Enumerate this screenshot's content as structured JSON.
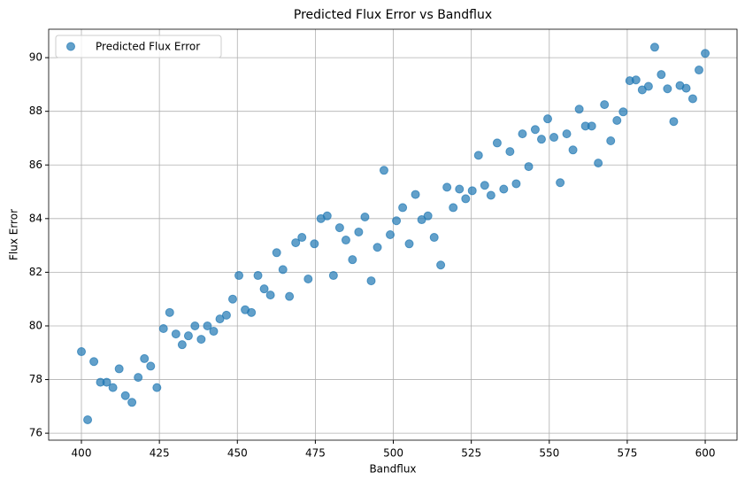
{
  "chart_data": {
    "type": "scatter",
    "title": "Predicted Flux Error vs Bandflux",
    "x_label": "Bandflux",
    "y_label": "Flux Error",
    "x": [
      400.0,
      402.0,
      404.0,
      406.1,
      408.1,
      410.1,
      412.1,
      414.1,
      416.2,
      418.2,
      420.2,
      422.2,
      424.2,
      426.3,
      428.3,
      430.3,
      432.3,
      434.3,
      436.4,
      438.4,
      440.4,
      442.4,
      444.4,
      446.5,
      448.5,
      450.5,
      452.5,
      454.5,
      456.6,
      458.6,
      460.6,
      462.6,
      464.6,
      466.7,
      468.7,
      470.7,
      472.7,
      474.7,
      476.8,
      478.8,
      480.8,
      482.8,
      484.8,
      486.9,
      488.9,
      490.9,
      492.9,
      494.9,
      497.0,
      499.0,
      501.0,
      503.0,
      505.1,
      507.1,
      509.1,
      511.1,
      513.1,
      515.2,
      517.2,
      519.2,
      521.2,
      523.2,
      525.3,
      527.3,
      529.3,
      531.3,
      533.3,
      535.4,
      537.4,
      539.4,
      541.4,
      543.4,
      545.5,
      547.5,
      549.5,
      551.5,
      553.5,
      555.6,
      557.6,
      559.6,
      561.6,
      563.6,
      565.7,
      567.7,
      569.7,
      571.7,
      573.7,
      575.8,
      577.8,
      579.8,
      581.8,
      583.8,
      585.9,
      587.9,
      589.9,
      591.9,
      593.9,
      596.0,
      598.0,
      600.0
    ],
    "series": [
      {
        "name": "Predicted Flux Error",
        "color": "#1f77b4",
        "values": [
          79.04,
          76.5,
          78.67,
          77.9,
          77.9,
          77.7,
          78.4,
          77.4,
          77.15,
          78.08,
          78.78,
          78.5,
          77.7,
          79.9,
          80.5,
          79.7,
          79.3,
          79.63,
          80.0,
          79.5,
          80.0,
          79.8,
          80.26,
          80.4,
          81.0,
          81.88,
          80.6,
          80.5,
          81.88,
          81.38,
          81.15,
          82.73,
          82.1,
          81.1,
          83.1,
          83.3,
          81.75,
          83.06,
          84.0,
          84.1,
          81.88,
          83.66,
          83.2,
          82.47,
          83.5,
          84.06,
          81.68,
          82.93,
          85.8,
          83.4,
          83.92,
          84.41,
          83.06,
          84.9,
          83.96,
          84.1,
          83.3,
          82.27,
          85.17,
          84.41,
          85.1,
          84.74,
          85.04,
          86.36,
          85.24,
          84.87,
          86.82,
          85.1,
          86.5,
          85.3,
          87.16,
          85.94,
          87.32,
          86.96,
          87.72,
          87.03,
          85.34,
          87.16,
          86.56,
          88.08,
          87.45,
          87.45,
          86.07,
          88.25,
          86.9,
          87.66,
          87.98,
          89.14,
          89.17,
          88.8,
          88.93,
          90.39,
          89.37,
          88.84,
          87.62,
          88.96,
          88.86,
          88.47,
          89.54,
          90.16
        ]
      }
    ],
    "xlim": [
      389.5,
      610.2
    ],
    "ylim": [
      75.74,
      91.06
    ],
    "xticks": [
      400,
      425,
      450,
      475,
      500,
      525,
      550,
      575,
      600
    ],
    "yticks": [
      76,
      78,
      80,
      82,
      84,
      86,
      88,
      90
    ],
    "grid": true,
    "legend": "upper-left"
  }
}
